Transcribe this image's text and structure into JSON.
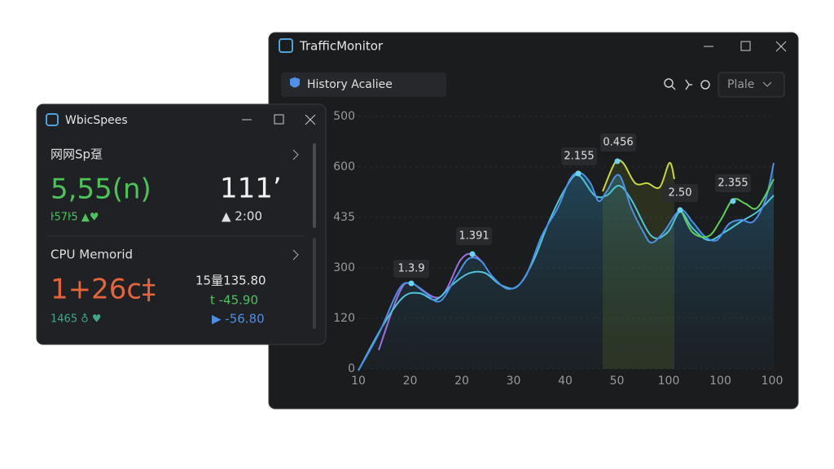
{
  "main_window": {
    "title": "TrafficMonitor",
    "tab": "History Acaliee",
    "dropdown": "Plale",
    "chart": {
      "y_labels": [
        "500",
        "600",
        "435",
        "300",
        "120",
        "0"
      ],
      "x_labels": [
        "10",
        "20",
        "20",
        "30",
        "40",
        "50",
        "100",
        "100",
        "100"
      ],
      "annotations": [
        "1.3.9",
        "1.391",
        "2.155",
        "0.456",
        "2.50",
        "2.355"
      ]
    }
  },
  "side_window": {
    "title": "WbicSpees",
    "section1": {
      "heading": "网网Sp趸",
      "big_left": "5,55(n)",
      "big_right": "111’",
      "small_left": "ŀ57ŀ5 ▲♥",
      "small_right": "▲ 2:00"
    },
    "section2": {
      "heading": "CPU Memorid",
      "big_left": "1+26c‡",
      "line1": "15量135.80",
      "line2": "t -45.90",
      "small_left": "1465 ♁ ♥",
      "line3": "▶ -56.80"
    }
  }
}
